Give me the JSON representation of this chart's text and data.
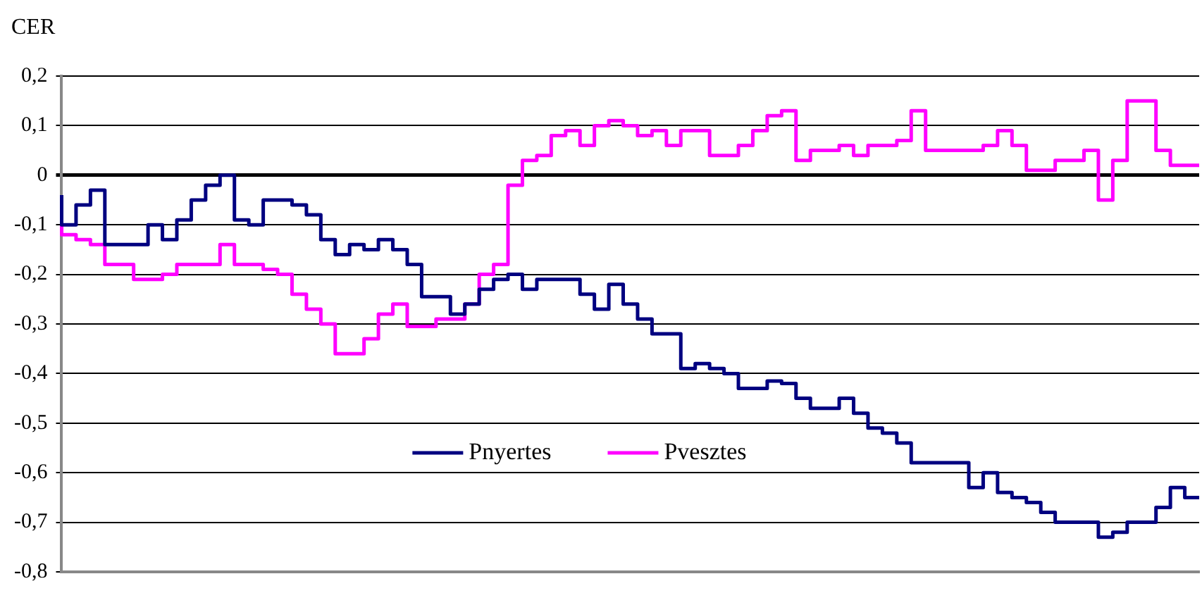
{
  "chart_data": {
    "type": "step",
    "ylabel": "CER",
    "categories": [
      null,
      null,
      null,
      null,
      null,
      null,
      null,
      null,
      null,
      null,
      null,
      null,
      null,
      null,
      null,
      null,
      null,
      null,
      null,
      null,
      null,
      null,
      null,
      null,
      null,
      null,
      null,
      null,
      null,
      null,
      null,
      null,
      null,
      null,
      null,
      null,
      null,
      null,
      null,
      null,
      null,
      null,
      null,
      null,
      null,
      null,
      null,
      null,
      null,
      null,
      null,
      null,
      null,
      null,
      null,
      null,
      null,
      null,
      null,
      null,
      null,
      null,
      null,
      null,
      null,
      null,
      null,
      null,
      null,
      null,
      null,
      null,
      null,
      null,
      null,
      null,
      null,
      null,
      null,
      null
    ],
    "series": [
      {
        "name": "Pnyertes",
        "color": "#000080",
        "values": [
          -0.04,
          -0.1,
          -0.06,
          -0.03,
          -0.14,
          -0.14,
          -0.14,
          -0.1,
          -0.13,
          -0.09,
          -0.05,
          -0.02,
          0,
          -0.09,
          -0.1,
          -0.05,
          -0.05,
          -0.06,
          -0.08,
          -0.13,
          -0.16,
          -0.14,
          -0.15,
          -0.13,
          -0.15,
          -0.18,
          -0.245,
          -0.245,
          -0.28,
          -0.26,
          -0.23,
          -0.21,
          -0.2,
          -0.23,
          -0.21,
          -0.21,
          -0.21,
          -0.24,
          -0.27,
          -0.22,
          -0.26,
          -0.29,
          -0.32,
          -0.32,
          -0.39,
          -0.38,
          -0.39,
          -0.4,
          -0.43,
          -0.43,
          -0.415,
          -0.42,
          -0.45,
          -0.47,
          -0.47,
          -0.45,
          -0.48,
          -0.51,
          -0.52,
          -0.54,
          -0.58,
          -0.58,
          -0.58,
          -0.58,
          -0.63,
          -0.6,
          -0.64,
          -0.65,
          -0.66,
          -0.68,
          -0.7,
          -0.7,
          -0.7,
          -0.73,
          -0.72,
          -0.7,
          -0.7,
          -0.67,
          -0.63,
          -0.65
        ]
      },
      {
        "name": "Pvesztes",
        "color": "#ff00ff",
        "values": [
          -0.1,
          -0.12,
          -0.13,
          -0.14,
          -0.18,
          -0.18,
          -0.21,
          -0.21,
          -0.2,
          -0.18,
          -0.18,
          -0.18,
          -0.14,
          -0.18,
          -0.18,
          -0.19,
          -0.2,
          -0.24,
          -0.27,
          -0.3,
          -0.36,
          -0.36,
          -0.33,
          -0.28,
          -0.26,
          -0.305,
          -0.305,
          -0.29,
          -0.29,
          -0.26,
          -0.2,
          -0.18,
          -0.02,
          0.03,
          0.04,
          0.08,
          0.09,
          0.06,
          0.1,
          0.11,
          0.1,
          0.08,
          0.09,
          0.06,
          0.09,
          0.09,
          0.04,
          0.04,
          0.06,
          0.09,
          0.12,
          0.13,
          0.03,
          0.05,
          0.05,
          0.06,
          0.04,
          0.06,
          0.06,
          0.07,
          0.13,
          0.05,
          0.05,
          0.05,
          0.05,
          0.06,
          0.09,
          0.06,
          0.01,
          0.01,
          0.03,
          0.03,
          0.05,
          -0.05,
          0.03,
          0.15,
          0.15,
          0.05,
          0.02,
          0.02
        ]
      }
    ],
    "ylim": [
      -0.8,
      0.2
    ],
    "yticks": [
      {
        "value": 0.2,
        "label": "0,2"
      },
      {
        "value": 0.1,
        "label": "0,1"
      },
      0,
      {
        "value": -0.1,
        "label": "-0,1"
      },
      {
        "value": -0.2,
        "label": "-0,2"
      },
      {
        "value": -0.3,
        "label": "-0,3"
      },
      {
        "value": -0.4,
        "label": "-0,4"
      },
      {
        "value": -0.5,
        "label": "-0,5"
      },
      {
        "value": -0.6,
        "label": "-0,6"
      },
      {
        "value": -0.7,
        "label": "-0,7"
      },
      {
        "value": -0.8,
        "label": "-0,8"
      }
    ],
    "grid": "y",
    "legend": "bottom",
    "tick_labels": "y"
  }
}
